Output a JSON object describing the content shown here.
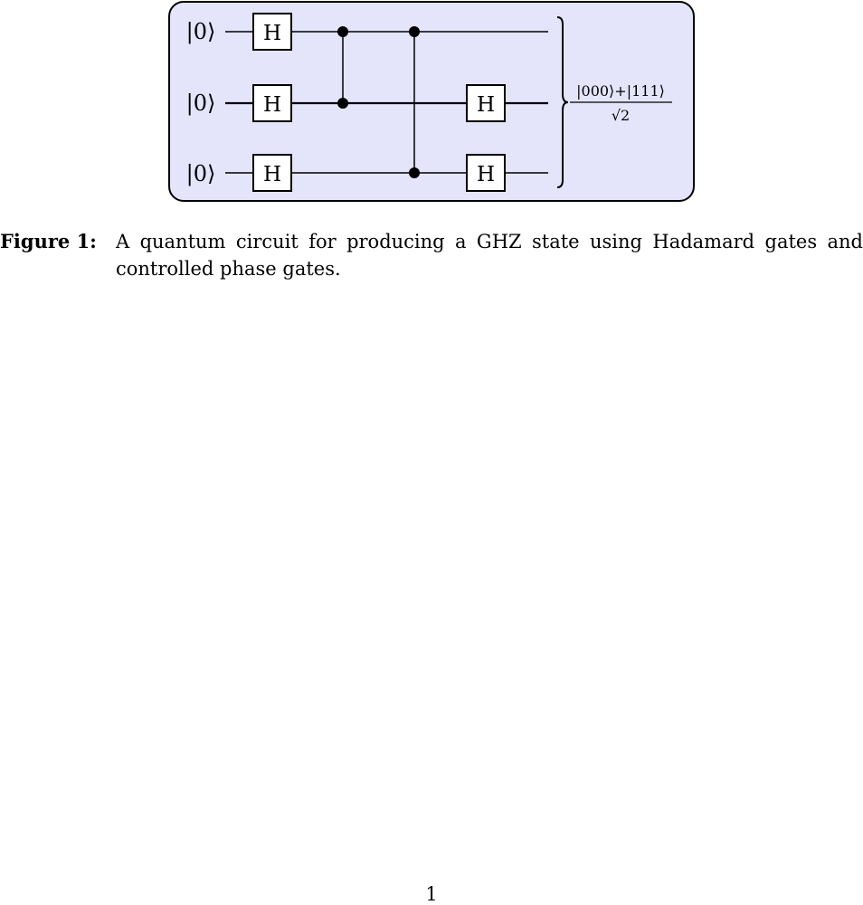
{
  "circuit": {
    "qubits": [
      {
        "input_state": "|0⟩"
      },
      {
        "input_state": "|0⟩"
      },
      {
        "input_state": "|0⟩"
      }
    ],
    "gates": [
      {
        "type": "H",
        "label": "H",
        "qubit": 0,
        "step": 1
      },
      {
        "type": "H",
        "label": "H",
        "qubit": 1,
        "step": 1
      },
      {
        "type": "H",
        "label": "H",
        "qubit": 2,
        "step": 1
      },
      {
        "type": "CZ",
        "qubits": [
          0,
          1
        ],
        "step": 2
      },
      {
        "type": "CZ",
        "qubits": [
          0,
          2
        ],
        "step": 3
      },
      {
        "type": "H",
        "label": "H",
        "qubit": 1,
        "step": 4
      },
      {
        "type": "H",
        "label": "H",
        "qubit": 2,
        "step": 4
      }
    ],
    "output_state": {
      "numerator": "|000⟩+|111⟩",
      "denominator": "√2"
    },
    "colors": {
      "panel_fill": "#e4e4fb",
      "panel_stroke": "#000000",
      "wire": "#000000"
    }
  },
  "caption": {
    "label": "Figure 1:",
    "text": "A quantum circuit for producing a GHZ state using Hadamard gates and controlled phase gates."
  },
  "page_number": "1"
}
